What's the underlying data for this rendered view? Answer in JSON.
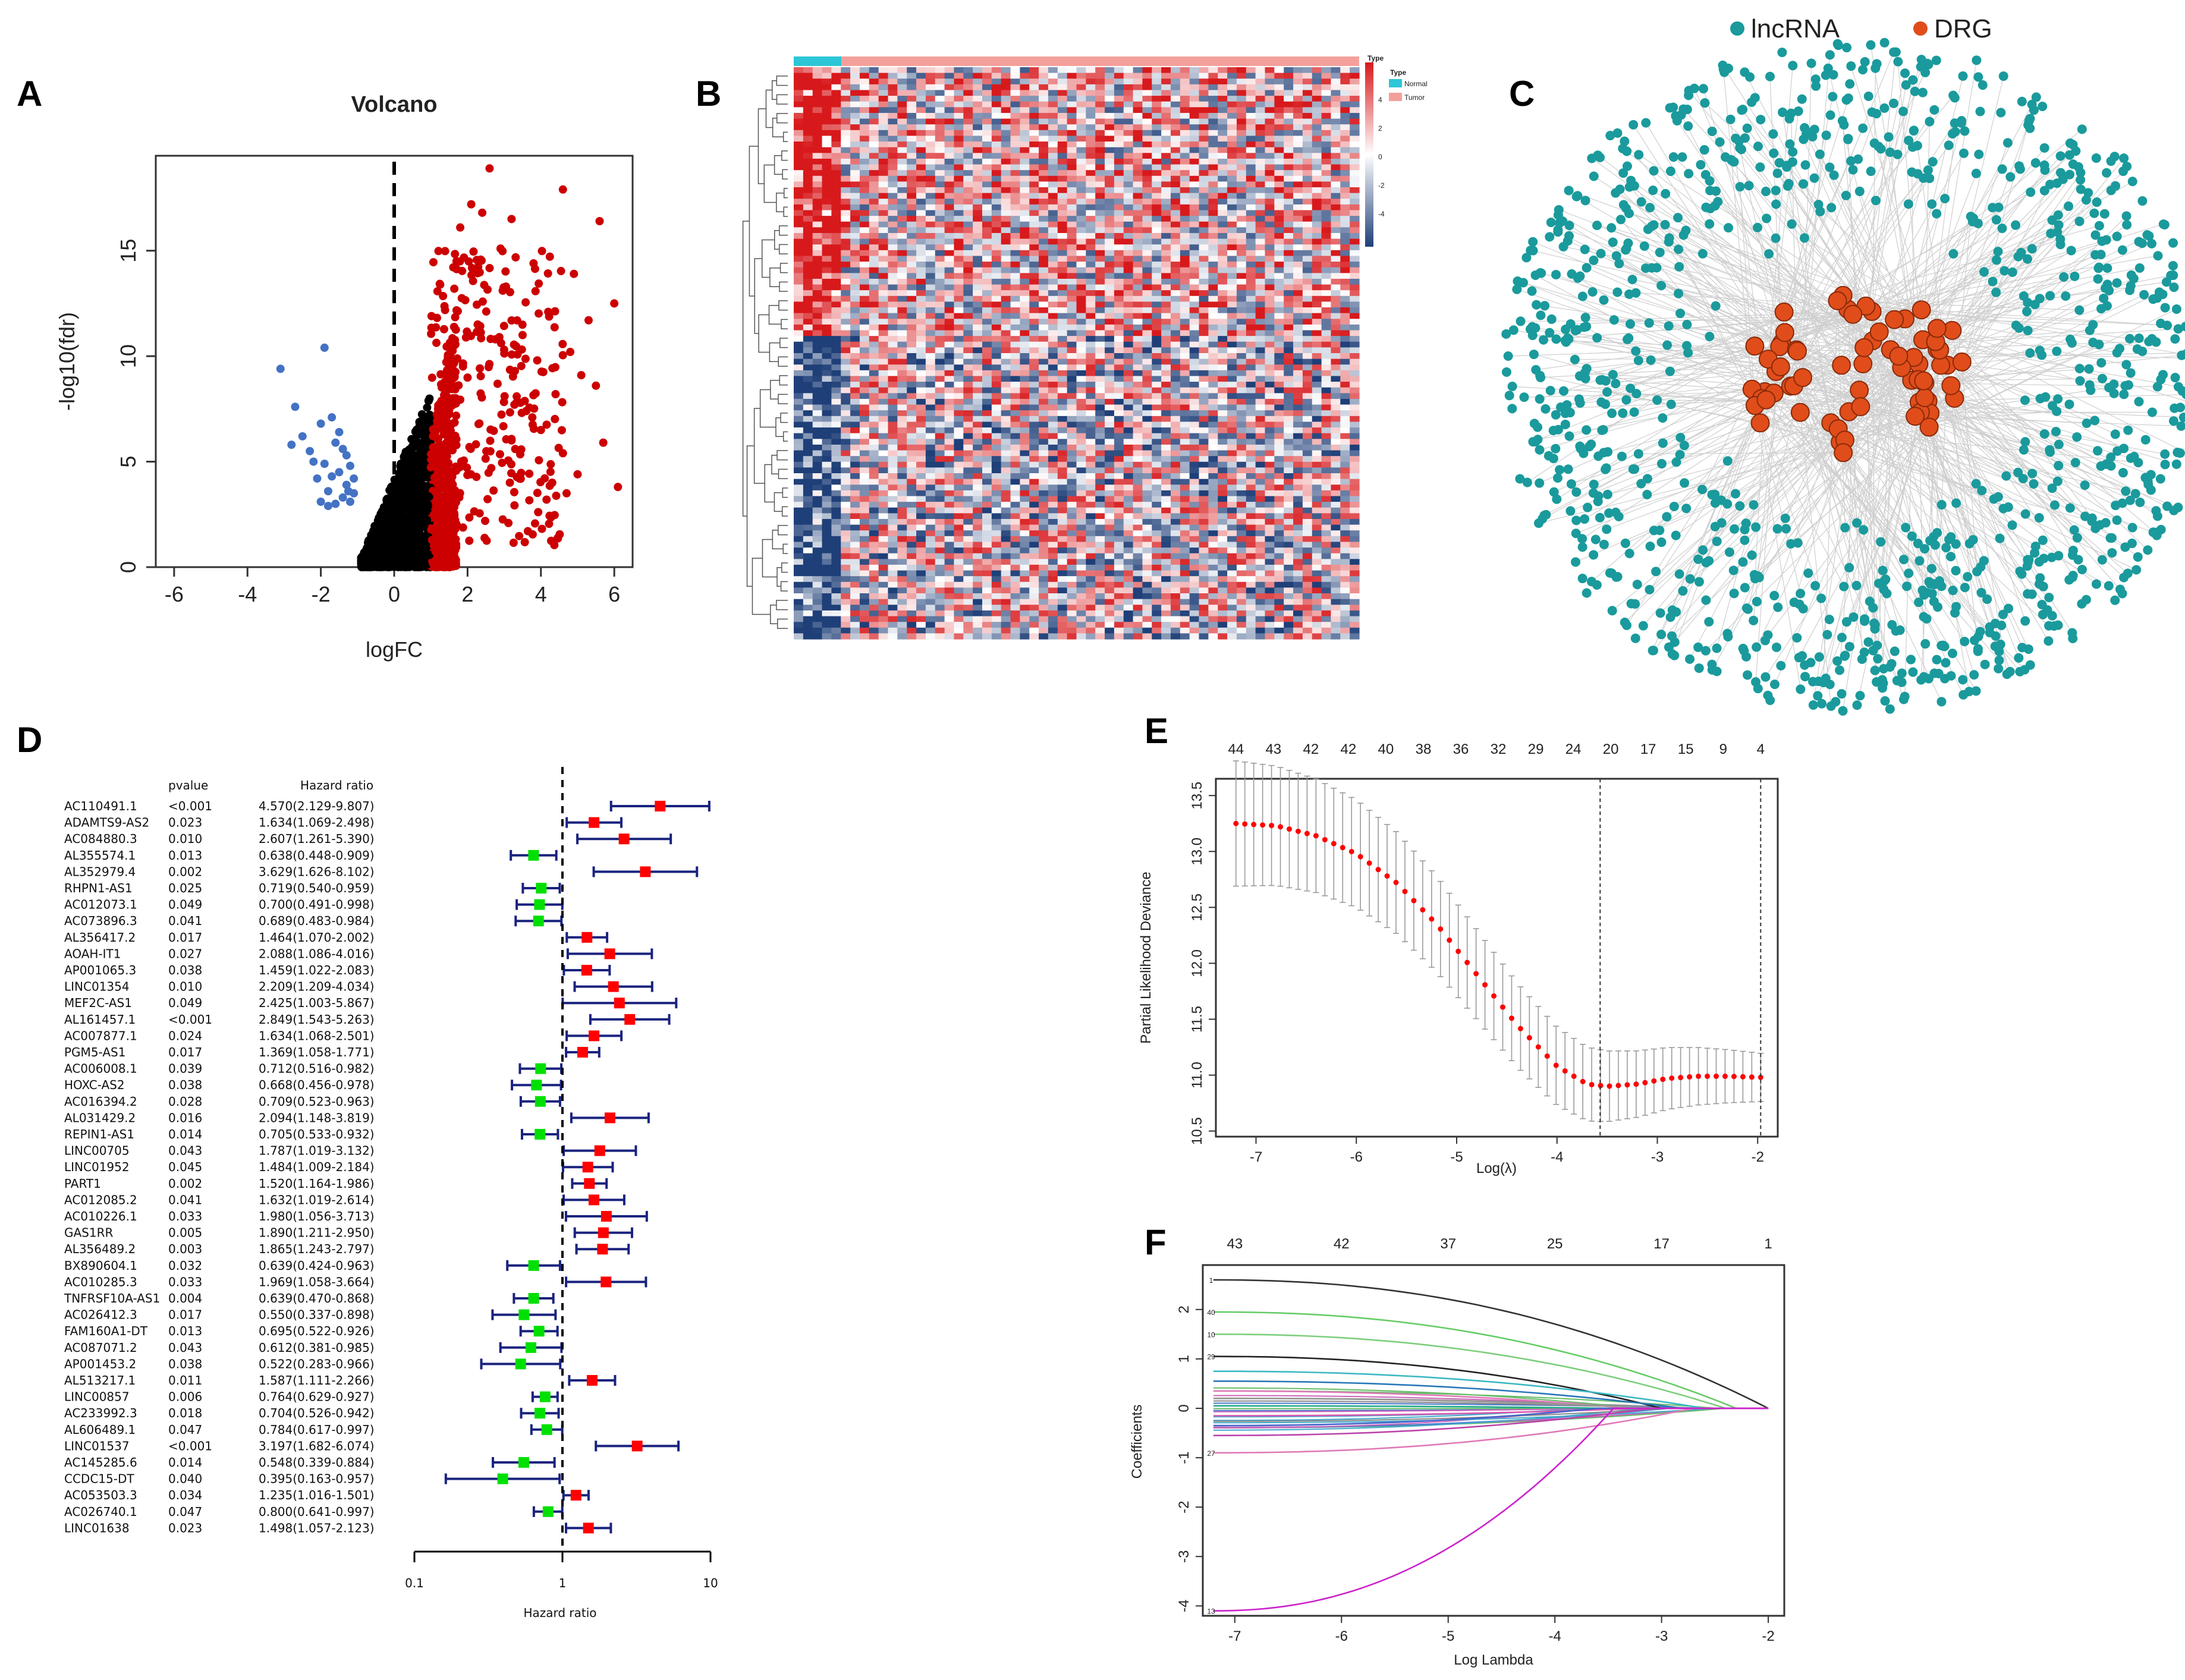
{
  "panel_labels": {
    "a": "A",
    "b": "B",
    "c": "C",
    "d": "D",
    "e": "E",
    "f": "F"
  },
  "colors": {
    "up": "#cc0000",
    "down": "#4472c4",
    "ns": "#000000",
    "heat_hi": "#d7191c",
    "heat_lo": "#1f3f78",
    "normal": "#2dc6d6",
    "tumor": "#f4a09a",
    "lncrna": "#1a9a9c",
    "drg": "#e04d1a",
    "fp_risk": "#ff0000",
    "fp_protect": "#00e000",
    "fp_bar": "#1a237e",
    "cv_dot": "#ff0000"
  },
  "legend": {
    "lncrna": "lncRNA",
    "drg": "DRG"
  },
  "chart_data": [
    {
      "type": "scatter",
      "panel": "A",
      "title": "Volcano",
      "xlabel": "logFC",
      "ylabel": "-log10(fdr)",
      "xlim": [
        -6.5,
        6.5
      ],
      "ylim": [
        0,
        19.5
      ],
      "xticks": [
        "-6",
        "-4",
        "-2",
        "0",
        "2",
        "4",
        "6"
      ],
      "yticks": [
        "0",
        "5",
        "10",
        "15"
      ],
      "series": [
        {
          "name": "down",
          "color": "#4472c4",
          "points": [
            [
              -3.1,
              9.4
            ],
            [
              -2.7,
              7.6
            ],
            [
              -2.5,
              6.2
            ],
            [
              -2.8,
              5.8
            ],
            [
              -2.3,
              5.5
            ],
            [
              -1.9,
              10.4
            ],
            [
              -1.7,
              7.1
            ],
            [
              -1.6,
              5.9
            ],
            [
              -1.5,
              4.5
            ],
            [
              -2.1,
              4.2
            ],
            [
              -1.8,
              3.6
            ],
            [
              -1.4,
              3.3
            ],
            [
              -1.2,
              4.8
            ],
            [
              -2.0,
              3.1
            ],
            [
              -1.3,
              3.9
            ],
            [
              -1.1,
              3.5
            ],
            [
              -1.6,
              3.0
            ],
            [
              -1.9,
              4.9
            ],
            [
              -1.3,
              5.3
            ],
            [
              -2.2,
              5.0
            ],
            [
              -1.5,
              6.4
            ],
            [
              -1.2,
              3.1
            ],
            [
              -1.7,
              4.3
            ],
            [
              -1.4,
              5.6
            ],
            [
              -2.0,
              6.8
            ],
            [
              -1.1,
              4.2
            ],
            [
              -1.8,
              2.9
            ],
            [
              -1.25,
              3.6
            ]
          ]
        },
        {
          "name": "up",
          "color": "#cc0000",
          "points": [
            [
              2.6,
              18.9
            ],
            [
              3.2,
              16.5
            ],
            [
              4.6,
              17.9
            ],
            [
              5.6,
              16.4
            ],
            [
              3.8,
              14.4
            ],
            [
              4.9,
              13.9
            ],
            [
              6.0,
              12.5
            ],
            [
              5.3,
              11.7
            ],
            [
              4.2,
              12.1
            ],
            [
              3.5,
              11.0
            ],
            [
              4.8,
              10.2
            ],
            [
              5.1,
              9.1
            ],
            [
              3.9,
              9.8
            ],
            [
              2.9,
              15.1
            ],
            [
              4.4,
              8.2
            ],
            [
              5.5,
              8.6
            ],
            [
              3.6,
              7.4
            ],
            [
              4.0,
              6.5
            ],
            [
              4.6,
              5.4
            ],
            [
              5.0,
              4.4
            ],
            [
              4.7,
              3.5
            ],
            [
              5.7,
              5.9
            ],
            [
              6.1,
              3.8
            ],
            [
              3.3,
              5.6
            ],
            [
              2.4,
              16.8
            ],
            [
              2.1,
              17.2
            ],
            [
              1.8,
              16.1
            ]
          ]
        }
      ]
    },
    {
      "type": "heatmap",
      "panel": "B",
      "legend_title": "Type",
      "legend_items": [
        "Normal",
        "Tumor"
      ],
      "scale_title": "Type",
      "scale_ticks": [
        "4",
        "2",
        "0",
        "-2",
        "-4"
      ]
    },
    {
      "type": "network",
      "panel": "C",
      "node_types": [
        "lncRNA",
        "DRG"
      ]
    },
    {
      "type": "forest",
      "panel": "D",
      "header_p": "pvalue",
      "header_hr": "Hazard ratio",
      "xlabel": "Hazard ratio",
      "xticks": [
        "0.1",
        "1",
        "10"
      ],
      "rows": [
        {
          "gene": "AC110491.1",
          "p": "<0.001",
          "hrtext": "4.570(2.129-9.807)",
          "hr": 4.57,
          "lo": 2.129,
          "hi": 9.807
        },
        {
          "gene": "ADAMTS9-AS2",
          "p": "0.023",
          "hrtext": "1.634(1.069-2.498)",
          "hr": 1.634,
          "lo": 1.069,
          "hi": 2.498
        },
        {
          "gene": "AC084880.3",
          "p": "0.010",
          "hrtext": "2.607(1.261-5.390)",
          "hr": 2.607,
          "lo": 1.261,
          "hi": 5.39
        },
        {
          "gene": "AL355574.1",
          "p": "0.013",
          "hrtext": "0.638(0.448-0.909)",
          "hr": 0.638,
          "lo": 0.448,
          "hi": 0.909
        },
        {
          "gene": "AL352979.4",
          "p": "0.002",
          "hrtext": "3.629(1.626-8.102)",
          "hr": 3.629,
          "lo": 1.626,
          "hi": 8.102
        },
        {
          "gene": "RHPN1-AS1",
          "p": "0.025",
          "hrtext": "0.719(0.540-0.959)",
          "hr": 0.719,
          "lo": 0.54,
          "hi": 0.959
        },
        {
          "gene": "AC012073.1",
          "p": "0.049",
          "hrtext": "0.700(0.491-0.998)",
          "hr": 0.7,
          "lo": 0.491,
          "hi": 0.998
        },
        {
          "gene": "AC073896.3",
          "p": "0.041",
          "hrtext": "0.689(0.483-0.984)",
          "hr": 0.689,
          "lo": 0.483,
          "hi": 0.984
        },
        {
          "gene": "AL356417.2",
          "p": "0.017",
          "hrtext": "1.464(1.070-2.002)",
          "hr": 1.464,
          "lo": 1.07,
          "hi": 2.002
        },
        {
          "gene": "AOAH-IT1",
          "p": "0.027",
          "hrtext": "2.088(1.086-4.016)",
          "hr": 2.088,
          "lo": 1.086,
          "hi": 4.016
        },
        {
          "gene": "AP001065.3",
          "p": "0.038",
          "hrtext": "1.459(1.022-2.083)",
          "hr": 1.459,
          "lo": 1.022,
          "hi": 2.083
        },
        {
          "gene": "LINC01354",
          "p": "0.010",
          "hrtext": "2.209(1.209-4.034)",
          "hr": 2.209,
          "lo": 1.209,
          "hi": 4.034
        },
        {
          "gene": "MEF2C-AS1",
          "p": "0.049",
          "hrtext": "2.425(1.003-5.867)",
          "hr": 2.425,
          "lo": 1.003,
          "hi": 5.867
        },
        {
          "gene": "AL161457.1",
          "p": "<0.001",
          "hrtext": "2.849(1.543-5.263)",
          "hr": 2.849,
          "lo": 1.543,
          "hi": 5.263
        },
        {
          "gene": "AC007877.1",
          "p": "0.024",
          "hrtext": "1.634(1.068-2.501)",
          "hr": 1.634,
          "lo": 1.068,
          "hi": 2.501
        },
        {
          "gene": "PGM5-AS1",
          "p": "0.017",
          "hrtext": "1.369(1.058-1.771)",
          "hr": 1.369,
          "lo": 1.058,
          "hi": 1.771
        },
        {
          "gene": "AC006008.1",
          "p": "0.039",
          "hrtext": "0.712(0.516-0.982)",
          "hr": 0.712,
          "lo": 0.516,
          "hi": 0.982
        },
        {
          "gene": "HOXC-AS2",
          "p": "0.038",
          "hrtext": "0.668(0.456-0.978)",
          "hr": 0.668,
          "lo": 0.456,
          "hi": 0.978
        },
        {
          "gene": "AC016394.2",
          "p": "0.028",
          "hrtext": "0.709(0.523-0.963)",
          "hr": 0.709,
          "lo": 0.523,
          "hi": 0.963
        },
        {
          "gene": "AL031429.2",
          "p": "0.016",
          "hrtext": "2.094(1.148-3.819)",
          "hr": 2.094,
          "lo": 1.148,
          "hi": 3.819
        },
        {
          "gene": "REPIN1-AS1",
          "p": "0.014",
          "hrtext": "0.705(0.533-0.932)",
          "hr": 0.705,
          "lo": 0.533,
          "hi": 0.932
        },
        {
          "gene": "LINC00705",
          "p": "0.043",
          "hrtext": "1.787(1.019-3.132)",
          "hr": 1.787,
          "lo": 1.019,
          "hi": 3.132
        },
        {
          "gene": "LINC01952",
          "p": "0.045",
          "hrtext": "1.484(1.009-2.184)",
          "hr": 1.484,
          "lo": 1.009,
          "hi": 2.184
        },
        {
          "gene": "PART1",
          "p": "0.002",
          "hrtext": "1.520(1.164-1.986)",
          "hr": 1.52,
          "lo": 1.164,
          "hi": 1.986
        },
        {
          "gene": "AC012085.2",
          "p": "0.041",
          "hrtext": "1.632(1.019-2.614)",
          "hr": 1.632,
          "lo": 1.019,
          "hi": 2.614
        },
        {
          "gene": "AC010226.1",
          "p": "0.033",
          "hrtext": "1.980(1.056-3.713)",
          "hr": 1.98,
          "lo": 1.056,
          "hi": 3.713
        },
        {
          "gene": "GAS1RR",
          "p": "0.005",
          "hrtext": "1.890(1.211-2.950)",
          "hr": 1.89,
          "lo": 1.211,
          "hi": 2.95
        },
        {
          "gene": "AL356489.2",
          "p": "0.003",
          "hrtext": "1.865(1.243-2.797)",
          "hr": 1.865,
          "lo": 1.243,
          "hi": 2.797
        },
        {
          "gene": "BX890604.1",
          "p": "0.032",
          "hrtext": "0.639(0.424-0.963)",
          "hr": 0.639,
          "lo": 0.424,
          "hi": 0.963
        },
        {
          "gene": "AC010285.3",
          "p": "0.033",
          "hrtext": "1.969(1.058-3.664)",
          "hr": 1.969,
          "lo": 1.058,
          "hi": 3.664
        },
        {
          "gene": "TNFRSF10A-AS1",
          "p": "0.004",
          "hrtext": "0.639(0.470-0.868)",
          "hr": 0.639,
          "lo": 0.47,
          "hi": 0.868
        },
        {
          "gene": "AC026412.3",
          "p": "0.017",
          "hrtext": "0.550(0.337-0.898)",
          "hr": 0.55,
          "lo": 0.337,
          "hi": 0.898
        },
        {
          "gene": "FAM160A1-DT",
          "p": "0.013",
          "hrtext": "0.695(0.522-0.926)",
          "hr": 0.695,
          "lo": 0.522,
          "hi": 0.926
        },
        {
          "gene": "AC087071.2",
          "p": "0.043",
          "hrtext": "0.612(0.381-0.985)",
          "hr": 0.612,
          "lo": 0.381,
          "hi": 0.985
        },
        {
          "gene": "AP001453.2",
          "p": "0.038",
          "hrtext": "0.522(0.283-0.966)",
          "hr": 0.522,
          "lo": 0.283,
          "hi": 0.966
        },
        {
          "gene": "AL513217.1",
          "p": "0.011",
          "hrtext": "1.587(1.111-2.266)",
          "hr": 1.587,
          "lo": 1.111,
          "hi": 2.266
        },
        {
          "gene": "LINC00857",
          "p": "0.006",
          "hrtext": "0.764(0.629-0.927)",
          "hr": 0.764,
          "lo": 0.629,
          "hi": 0.927
        },
        {
          "gene": "AC233992.3",
          "p": "0.018",
          "hrtext": "0.704(0.526-0.942)",
          "hr": 0.704,
          "lo": 0.526,
          "hi": 0.942
        },
        {
          "gene": "AL606489.1",
          "p": "0.047",
          "hrtext": "0.784(0.617-0.997)",
          "hr": 0.784,
          "lo": 0.617,
          "hi": 0.997
        },
        {
          "gene": "LINC01537",
          "p": "<0.001",
          "hrtext": "3.197(1.682-6.074)",
          "hr": 3.197,
          "lo": 1.682,
          "hi": 6.074
        },
        {
          "gene": "AC145285.6",
          "p": "0.014",
          "hrtext": "0.548(0.339-0.884)",
          "hr": 0.548,
          "lo": 0.339,
          "hi": 0.884
        },
        {
          "gene": "CCDC15-DT",
          "p": "0.040",
          "hrtext": "0.395(0.163-0.957)",
          "hr": 0.395,
          "lo": 0.163,
          "hi": 0.957
        },
        {
          "gene": "AC053503.3",
          "p": "0.034",
          "hrtext": "1.235(1.016-1.501)",
          "hr": 1.235,
          "lo": 1.016,
          "hi": 1.501
        },
        {
          "gene": "AC026740.1",
          "p": "0.047",
          "hrtext": "0.800(0.641-0.997)",
          "hr": 0.8,
          "lo": 0.641,
          "hi": 0.997
        },
        {
          "gene": "LINC01638",
          "p": "0.023",
          "hrtext": "1.498(1.057-2.123)",
          "hr": 1.498,
          "lo": 1.057,
          "hi": 2.123
        }
      ]
    },
    {
      "type": "line",
      "panel": "E",
      "xlabel": "Log(λ)",
      "ylabel": "Partial Likelihood Deviance",
      "xlim": [
        -7.4,
        -1.8
      ],
      "ylim": [
        10.45,
        13.65
      ],
      "xticks": [
        "-7",
        "-6",
        "-5",
        "-4",
        "-3",
        "-2"
      ],
      "yticks": [
        "10.5",
        "11.0",
        "11.5",
        "12.0",
        "12.5",
        "13.0",
        "13.5"
      ],
      "top_ticks": [
        "44",
        "43",
        "42",
        "42",
        "40",
        "38",
        "36",
        "32",
        "29",
        "24",
        "20",
        "17",
        "15",
        "9",
        "4"
      ],
      "vlines": [
        -3.57,
        -1.97
      ],
      "curve_keypoints": [
        [
          -7.2,
          13.25
        ],
        [
          -6.8,
          13.23
        ],
        [
          -6.4,
          13.14
        ],
        [
          -6.0,
          12.98
        ],
        [
          -5.6,
          12.72
        ],
        [
          -5.2,
          12.35
        ],
        [
          -4.8,
          11.9
        ],
        [
          -4.4,
          11.45
        ],
        [
          -4.0,
          11.08
        ],
        [
          -3.7,
          10.92
        ],
        [
          -3.5,
          10.9
        ],
        [
          -3.2,
          10.92
        ],
        [
          -2.9,
          10.97
        ],
        [
          -2.6,
          10.99
        ],
        [
          -2.3,
          10.99
        ],
        [
          -1.97,
          10.98
        ]
      ]
    },
    {
      "type": "line",
      "panel": "F",
      "xlabel": "Log Lambda",
      "ylabel": "Coefficients",
      "xlim": [
        -7.3,
        -1.85
      ],
      "ylim": [
        -4.2,
        2.9
      ],
      "xticks": [
        "-7",
        "-6",
        "-5",
        "-4",
        "-3",
        "-2"
      ],
      "yticks": [
        "-4",
        "-3",
        "-2",
        "-1",
        "0",
        "1",
        "2"
      ],
      "top_ticks": [
        "43",
        "42",
        "37",
        "25",
        "17",
        "1"
      ],
      "left_labels": [
        "1",
        "40",
        "10",
        "29",
        "27",
        "13"
      ],
      "paths": [
        {
          "label": "1",
          "start": 2.6,
          "end_x": -2.0,
          "color": "#333333"
        },
        {
          "label": "40",
          "start": 1.95,
          "end_x": -2.3,
          "color": "#66cc66"
        },
        {
          "label": "10",
          "start": 1.5,
          "end_x": -2.4,
          "color": "#7dce7d"
        },
        {
          "label": "29",
          "start": 1.05,
          "end_x": -3.0,
          "color": "#222222"
        },
        {
          "label": "",
          "start": 0.75,
          "end_x": -2.6,
          "color": "#3cb9c2"
        },
        {
          "label": "",
          "start": 0.55,
          "end_x": -2.8,
          "color": "#2878b8"
        },
        {
          "label": "",
          "start": 0.35,
          "end_x": -3.3,
          "color": "#e07ab8"
        },
        {
          "label": "",
          "start": 0.2,
          "end_x": -3.0,
          "color": "#999999"
        },
        {
          "label": "",
          "start": 0.05,
          "end_x": -3.5,
          "color": "#22aa88"
        },
        {
          "label": "",
          "start": -0.15,
          "end_x": -3.2,
          "color": "#d85ab0"
        },
        {
          "label": "",
          "start": -0.35,
          "end_x": -3.6,
          "color": "#4466cc"
        },
        {
          "label": "",
          "start": -0.55,
          "end_x": -3.1,
          "color": "#bb44aa"
        },
        {
          "label": "27",
          "start": -0.9,
          "end_x": -2.7,
          "color": "#e07ab8"
        },
        {
          "label": "13",
          "start": -4.1,
          "end_x": -3.45,
          "color": "#cc22cc"
        }
      ]
    }
  ]
}
